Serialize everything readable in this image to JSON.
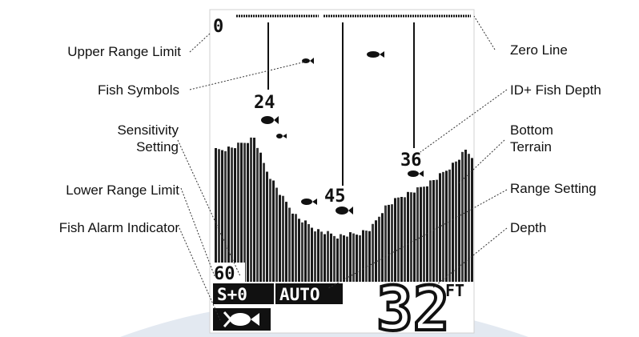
{
  "callouts": {
    "upper_range_limit": "Upper Range Limit",
    "fish_symbols": "Fish Symbols",
    "sensitivity_line1": "Sensitivity",
    "sensitivity_line2": "Setting",
    "lower_range_limit": "Lower Range Limit",
    "fish_alarm_indicator": "Fish Alarm Indicator",
    "zero_line": "Zero Line",
    "id_fish_depth": "ID+ Fish Depth",
    "bottom_terrain_line1": "Bottom",
    "bottom_terrain_line2": "Terrain",
    "range_setting": "Range Setting",
    "depth": "Depth"
  },
  "screen": {
    "upper_range_value": "0",
    "lower_range_value": "60",
    "sensitivity_value": "S+0",
    "range_mode": "AUTO",
    "depth_value": "32",
    "depth_unit": "FT",
    "fish_depths": [
      "24",
      "45",
      "36"
    ]
  },
  "colors": {
    "lcd_ink": "#111111",
    "background": "#ffffff",
    "watermark": "#d8e0ea"
  }
}
